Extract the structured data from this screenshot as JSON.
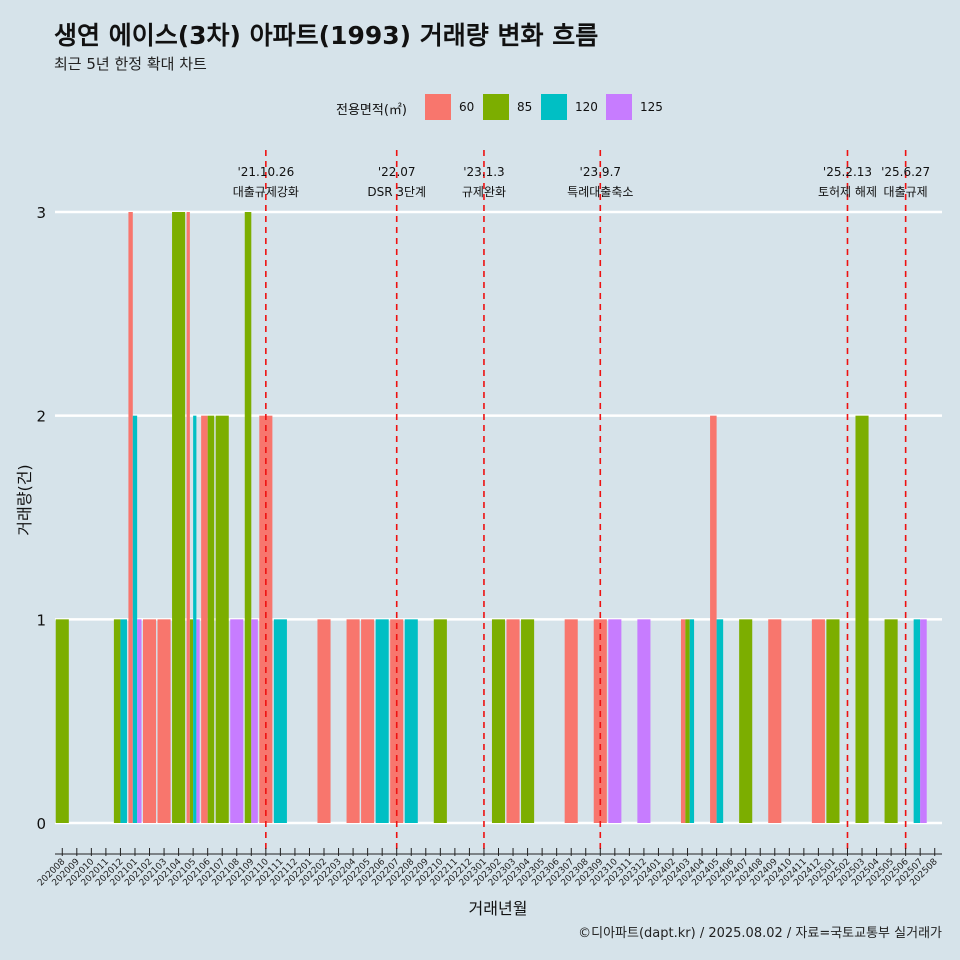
{
  "title": "생연 에이스(3차) 아파트(1993) 거래량 변화 흐름",
  "subtitle": "최근 5년 한정 확대 차트",
  "caption": "©디아파트(dapt.kr) / 2025.08.02 / 자료=국토교통부 실거래가",
  "legend": {
    "title": "전용면적(㎡)",
    "items": [
      {
        "label": "60",
        "color": "#F8766D"
      },
      {
        "label": "85",
        "color": "#7CAE00"
      },
      {
        "label": "120",
        "color": "#00BFC4"
      },
      {
        "label": "125",
        "color": "#C77CFF"
      }
    ]
  },
  "chart_data": {
    "type": "bar",
    "xlabel": "거래년월",
    "ylabel": "거래량(건)",
    "ylim": [
      0,
      3
    ],
    "yticks": [
      0,
      1,
      2,
      3
    ],
    "grid": true,
    "legend_position": "top",
    "categories": [
      "202008",
      "202009",
      "202010",
      "202011",
      "202012",
      "202101",
      "202102",
      "202103",
      "202104",
      "202105",
      "202106",
      "202107",
      "202108",
      "202109",
      "202110",
      "202111",
      "202112",
      "202201",
      "202202",
      "202203",
      "202204",
      "202205",
      "202206",
      "202207",
      "202208",
      "202209",
      "202210",
      "202211",
      "202212",
      "202301",
      "202302",
      "202303",
      "202304",
      "202305",
      "202306",
      "202307",
      "202308",
      "202309",
      "202310",
      "202311",
      "202312",
      "202401",
      "202402",
      "202403",
      "202404",
      "202405",
      "202406",
      "202407",
      "202408",
      "202409",
      "202410",
      "202411",
      "202412",
      "202501",
      "202502",
      "202503",
      "202504",
      "202505",
      "202506",
      "202507",
      "202508"
    ],
    "series": [
      {
        "name": "60",
        "color": "#F8766D",
        "values": [
          0,
          0,
          0,
          0,
          0,
          3,
          1,
          1,
          0,
          3,
          2,
          0,
          0,
          0,
          2,
          0,
          0,
          0,
          1,
          0,
          1,
          1,
          0,
          1,
          0,
          0,
          0,
          0,
          0,
          0,
          0,
          1,
          0,
          0,
          0,
          1,
          0,
          1,
          0,
          0,
          0,
          0,
          0,
          1,
          0,
          2,
          0,
          0,
          0,
          1,
          0,
          0,
          1,
          0,
          0,
          0,
          0,
          0,
          0,
          0,
          0
        ]
      },
      {
        "name": "85",
        "color": "#7CAE00",
        "values": [
          1,
          0,
          0,
          0,
          1,
          0,
          0,
          0,
          3,
          1,
          2,
          2,
          0,
          3,
          0,
          0,
          0,
          0,
          0,
          0,
          0,
          0,
          0,
          0,
          0,
          0,
          1,
          0,
          0,
          0,
          1,
          0,
          1,
          0,
          0,
          0,
          0,
          0,
          0,
          0,
          0,
          0,
          0,
          1,
          0,
          0,
          0,
          1,
          0,
          0,
          0,
          0,
          0,
          1,
          0,
          2,
          0,
          1,
          0,
          0,
          0
        ]
      },
      {
        "name": "120",
        "color": "#00BFC4",
        "values": [
          0,
          0,
          0,
          0,
          1,
          2,
          0,
          0,
          0,
          2,
          0,
          0,
          0,
          0,
          0,
          1,
          0,
          0,
          0,
          0,
          0,
          0,
          1,
          0,
          1,
          0,
          0,
          0,
          0,
          0,
          0,
          0,
          0,
          0,
          0,
          0,
          0,
          0,
          0,
          0,
          0,
          0,
          0,
          1,
          0,
          1,
          0,
          0,
          0,
          0,
          0,
          0,
          0,
          0,
          0,
          0,
          0,
          0,
          0,
          1,
          0
        ]
      },
      {
        "name": "125",
        "color": "#C77CFF",
        "values": [
          0,
          0,
          0,
          0,
          0,
          1,
          0,
          0,
          0,
          1,
          0,
          0,
          1,
          1,
          0,
          0,
          0,
          0,
          0,
          0,
          0,
          0,
          0,
          0,
          0,
          0,
          0,
          0,
          0,
          0,
          0,
          0,
          0,
          0,
          0,
          0,
          0,
          0,
          1,
          0,
          1,
          0,
          0,
          0,
          0,
          0,
          0,
          0,
          0,
          0,
          0,
          0,
          0,
          0,
          0,
          0,
          0,
          0,
          0,
          1,
          0
        ]
      }
    ],
    "events": [
      {
        "date": "'21.10.26",
        "label": "대출규제강화",
        "at": "202110"
      },
      {
        "date": "'22.07",
        "label": "DSR 3단계",
        "at": "202207"
      },
      {
        "date": "'23.1.3",
        "label": "규제완화",
        "at": "202301"
      },
      {
        "date": "'23.9.7",
        "label": "특례대출축소",
        "at": "202309"
      },
      {
        "date": "'25.2.13",
        "label": "토허제 해제",
        "at": "202502"
      },
      {
        "date": "'25.6.27",
        "label": "대출규제",
        "at": "202506"
      }
    ]
  }
}
